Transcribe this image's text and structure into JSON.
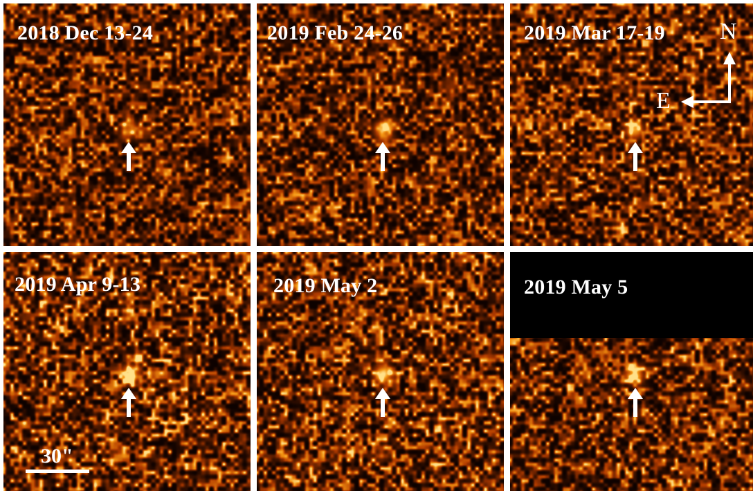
{
  "panels": [
    {
      "id": "p1",
      "label": "2018 Dec 13-24",
      "source_brightness": 0.55,
      "noise_level": 0.45
    },
    {
      "id": "p2",
      "label": "2019 Feb 24-26",
      "source_brightness": 0.75,
      "noise_level": 0.45
    },
    {
      "id": "p3",
      "label": "2019 Mar 17-19",
      "source_brightness": 0.8,
      "noise_level": 0.5
    },
    {
      "id": "p4",
      "label": "2019 Apr 9-13",
      "source_brightness": 0.95,
      "noise_level": 0.6
    },
    {
      "id": "p5",
      "label": "2019 May 2",
      "source_brightness": 1.0,
      "noise_level": 0.55
    },
    {
      "id": "p6",
      "label": "2019 May 5",
      "source_brightness": 0.8,
      "noise_level": 0.5,
      "masked_top_fraction": 0.36
    }
  ],
  "compass": {
    "north": "N",
    "east": "E"
  },
  "scalebar": {
    "label": "30\""
  },
  "colors": {
    "background": "#ffffff",
    "colormap_dark": "#0d0200",
    "colormap_mid": "#b33c00",
    "colormap_bright": "#ffe089",
    "marker": "#ffffff",
    "text": "#ffffff"
  },
  "icons": {
    "marker": "up-arrow-icon",
    "compass": "compass-arrows-icon"
  }
}
